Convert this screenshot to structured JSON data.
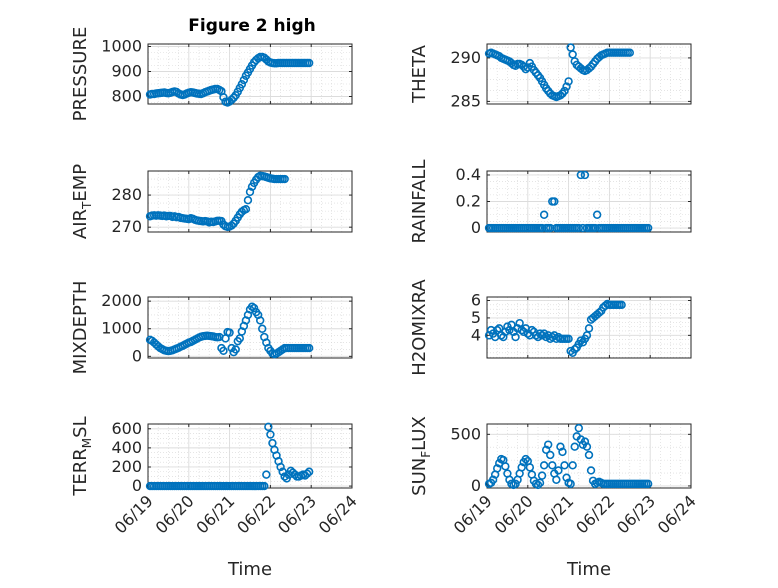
{
  "figure": {
    "title": "Figure 2 high",
    "marker_color": "#0072BD"
  },
  "chart_data": [
    {
      "type": "scatter",
      "ylabel": "PRESSURE",
      "ylabel_sub": "",
      "xlim": [
        "06/19",
        "06/24"
      ],
      "ylim": [
        770,
        1010
      ],
      "yticks": [
        800,
        900,
        1000
      ],
      "xtick_labels_visible": false,
      "grid": true,
      "x": [
        0.05,
        0.1,
        0.15,
        0.2,
        0.25,
        0.3,
        0.35,
        0.4,
        0.45,
        0.5,
        0.55,
        0.6,
        0.65,
        0.7,
        0.75,
        0.8,
        0.85,
        0.9,
        0.95,
        1.0,
        1.05,
        1.1,
        1.15,
        1.2,
        1.25,
        1.3,
        1.35,
        1.4,
        1.45,
        1.5,
        1.55,
        1.6,
        1.65,
        1.7,
        1.75,
        1.8,
        1.85,
        1.9,
        1.95,
        2.0,
        2.05,
        2.1,
        2.15,
        2.2,
        2.25,
        2.3,
        2.35,
        2.4,
        2.45,
        2.5,
        2.55,
        2.6,
        2.65,
        2.7,
        2.75,
        2.8,
        2.85,
        2.9,
        2.95,
        3.0,
        3.05,
        3.1,
        3.15,
        3.2,
        3.25,
        3.3,
        3.35,
        3.4,
        3.45,
        3.5,
        3.55,
        3.6,
        3.65,
        3.7,
        3.75,
        3.8,
        3.85,
        3.9,
        3.95
      ],
      "y": [
        808,
        810,
        810,
        812,
        813,
        814,
        815,
        816,
        814,
        813,
        815,
        818,
        820,
        818,
        812,
        808,
        806,
        808,
        812,
        815,
        817,
        816,
        814,
        812,
        811,
        810,
        813,
        817,
        820,
        823,
        826,
        828,
        830,
        830,
        826,
        821,
        797,
        779,
        776,
        780,
        787,
        795,
        805,
        819,
        834,
        849,
        866,
        883,
        896,
        910,
        924,
        937,
        946,
        953,
        958,
        958,
        955,
        948,
        940,
        936,
        934,
        933,
        933,
        934,
        934,
        934,
        934,
        934,
        934,
        934,
        934,
        934,
        934,
        934,
        934,
        934,
        934,
        934,
        934
      ]
    },
    {
      "type": "scatter",
      "ylabel": "THETA",
      "ylabel_sub": "",
      "xlim": [
        "06/19",
        "06/24"
      ],
      "ylim": [
        284.7,
        291.6
      ],
      "yticks": [
        285,
        290
      ],
      "xtick_labels_visible": false,
      "grid": true,
      "x": [
        0.05,
        0.1,
        0.15,
        0.2,
        0.25,
        0.3,
        0.35,
        0.4,
        0.45,
        0.5,
        0.55,
        0.6,
        0.65,
        0.7,
        0.75,
        0.8,
        0.85,
        0.9,
        0.95,
        1.0,
        1.05,
        1.1,
        1.15,
        1.2,
        1.25,
        1.3,
        1.35,
        1.4,
        1.45,
        1.5,
        1.55,
        1.6,
        1.65,
        1.7,
        1.75,
        1.8,
        1.85,
        1.9,
        1.95,
        2.0,
        2.05,
        2.1,
        2.15,
        2.2,
        2.25,
        2.3,
        2.35,
        2.4,
        2.45,
        2.5,
        2.55,
        2.6,
        2.65,
        2.7,
        2.75,
        2.8,
        2.85,
        2.9,
        2.95,
        3.0,
        3.05,
        3.1,
        3.15,
        3.2,
        3.25,
        3.3,
        3.35,
        3.4,
        3.45,
        3.5
      ],
      "y": [
        290.5,
        290.6,
        290.5,
        290.4,
        290.3,
        290.2,
        290.0,
        289.9,
        289.8,
        289.7,
        289.6,
        289.4,
        289.2,
        289.1,
        289.3,
        289.3,
        289.2,
        289.0,
        288.7,
        288.9,
        289.4,
        289.0,
        288.6,
        288.3,
        288.0,
        287.7,
        287.3,
        286.9,
        286.5,
        286.2,
        285.9,
        285.7,
        285.6,
        285.5,
        285.6,
        285.7,
        285.9,
        286.2,
        286.7,
        287.3,
        291.2,
        290.4,
        289.6,
        289.2,
        289.0,
        288.8,
        288.6,
        288.5,
        288.6,
        288.8,
        289.0,
        289.3,
        289.6,
        289.9,
        290.1,
        290.3,
        290.4,
        290.5,
        290.6,
        290.6,
        290.6,
        290.6,
        290.6,
        290.6,
        290.6,
        290.6,
        290.6,
        290.6,
        290.6,
        290.6
      ]
    },
    {
      "type": "scatter",
      "ylabel": "AIR",
      "ylabel_sub": "T",
      "ylabel_rest": "EMP",
      "xlim": [
        "06/19",
        "06/24"
      ],
      "ylim": [
        268.5,
        287.5
      ],
      "yticks": [
        270,
        280
      ],
      "xtick_labels_visible": false,
      "grid": true,
      "x": [
        0.05,
        0.1,
        0.15,
        0.2,
        0.25,
        0.3,
        0.35,
        0.4,
        0.45,
        0.5,
        0.55,
        0.6,
        0.65,
        0.7,
        0.75,
        0.8,
        0.85,
        0.9,
        0.95,
        1.0,
        1.05,
        1.1,
        1.15,
        1.2,
        1.25,
        1.3,
        1.35,
        1.4,
        1.45,
        1.5,
        1.55,
        1.6,
        1.65,
        1.7,
        1.75,
        1.8,
        1.85,
        1.9,
        1.95,
        2.0,
        2.05,
        2.1,
        2.15,
        2.2,
        2.25,
        2.3,
        2.35,
        2.4,
        2.45,
        2.5,
        2.55,
        2.6,
        2.65,
        2.7,
        2.75,
        2.8,
        2.85,
        2.9,
        2.95,
        3.0,
        3.05,
        3.1,
        3.15,
        3.2,
        3.25,
        3.3,
        3.35
      ],
      "y": [
        273.4,
        273.6,
        273.7,
        273.6,
        273.7,
        273.6,
        273.5,
        273.6,
        273.4,
        273.5,
        273.5,
        273.2,
        273.4,
        273.1,
        273.2,
        272.9,
        272.8,
        272.7,
        272.6,
        272.5,
        272.8,
        272.6,
        272.3,
        272.1,
        272.0,
        271.9,
        271.8,
        271.9,
        271.8,
        271.5,
        271.7,
        271.6,
        271.8,
        272.0,
        272.0,
        271.9,
        270.8,
        270.3,
        270.1,
        270.2,
        270.5,
        271.1,
        272.0,
        273.0,
        274.0,
        274.8,
        275.3,
        275.6,
        278.4,
        281.0,
        282.6,
        283.8,
        284.8,
        285.6,
        286.0,
        285.9,
        285.8,
        285.6,
        285.4,
        285.2,
        285.1,
        285.0,
        285.0,
        285.0,
        285.0,
        285.0,
        285.0
      ]
    },
    {
      "type": "scatter",
      "ylabel": "RAINFALL",
      "ylabel_sub": "",
      "xlim": [
        "06/19",
        "06/24"
      ],
      "ylim": [
        -0.03,
        0.43
      ],
      "yticks": [
        0,
        0.2,
        0.4
      ],
      "xtick_labels_visible": false,
      "grid": true,
      "x": [
        0.05,
        0.1,
        0.15,
        0.2,
        0.25,
        0.3,
        0.35,
        0.4,
        0.45,
        0.5,
        0.55,
        0.6,
        0.65,
        0.7,
        0.75,
        0.8,
        0.85,
        0.9,
        0.95,
        1.0,
        1.05,
        1.1,
        1.15,
        1.2,
        1.25,
        1.3,
        1.35,
        1.4,
        1.45,
        1.5,
        1.55,
        1.6,
        1.65,
        1.7,
        1.75,
        1.8,
        1.85,
        1.9,
        1.95,
        2.0,
        2.05,
        2.1,
        2.15,
        2.2,
        2.25,
        2.3,
        2.35,
        2.4,
        2.45,
        2.5,
        2.55,
        2.6,
        2.65,
        2.7,
        2.75,
        2.8,
        2.85,
        2.9,
        2.95,
        3.0,
        3.05,
        3.1,
        3.15,
        3.2,
        3.25,
        3.3,
        3.35,
        3.4,
        3.45,
        3.5,
        3.55,
        3.6,
        3.65,
        3.7,
        3.75,
        3.8,
        3.85,
        3.9,
        3.95
      ],
      "y": [
        0,
        0,
        0,
        0,
        0,
        0,
        0,
        0,
        0,
        0,
        0,
        0,
        0,
        0,
        0,
        0,
        0,
        0,
        0,
        0,
        0,
        0,
        0,
        0,
        0,
        0,
        0,
        0.1,
        0,
        0,
        0,
        0.2,
        0.2,
        0,
        0,
        0,
        0,
        0,
        0,
        0,
        0,
        0,
        0,
        0,
        0,
        0.4,
        0,
        0.4,
        0,
        0,
        0,
        0,
        0,
        0.1,
        0,
        0,
        0,
        0,
        0,
        0,
        0,
        0,
        0,
        0,
        0,
        0,
        0,
        0,
        0,
        0,
        0,
        0,
        0,
        0,
        0,
        0,
        0,
        0,
        0
      ]
    },
    {
      "type": "scatter",
      "ylabel": "MIXDEPTH",
      "ylabel_sub": "",
      "xlim": [
        "06/19",
        "06/24"
      ],
      "ylim": [
        -60,
        2150
      ],
      "yticks": [
        0,
        1000,
        2000
      ],
      "xtick_labels_visible": false,
      "grid": true,
      "x": [
        0.05,
        0.1,
        0.15,
        0.2,
        0.25,
        0.3,
        0.35,
        0.4,
        0.45,
        0.5,
        0.55,
        0.6,
        0.65,
        0.7,
        0.75,
        0.8,
        0.85,
        0.9,
        0.95,
        1.0,
        1.05,
        1.1,
        1.15,
        1.2,
        1.25,
        1.3,
        1.35,
        1.4,
        1.45,
        1.5,
        1.55,
        1.6,
        1.65,
        1.7,
        1.75,
        1.8,
        1.85,
        1.9,
        1.95,
        2.0,
        2.05,
        2.1,
        2.15,
        2.2,
        2.25,
        2.3,
        2.35,
        2.4,
        2.45,
        2.5,
        2.55,
        2.6,
        2.65,
        2.7,
        2.75,
        2.8,
        2.85,
        2.9,
        2.95,
        3.0,
        3.05,
        3.1,
        3.15,
        3.2,
        3.25,
        3.3,
        3.35,
        3.4,
        3.45,
        3.5,
        3.55,
        3.6,
        3.65,
        3.7,
        3.75,
        3.8,
        3.85,
        3.9,
        3.95
      ],
      "y": [
        600,
        560,
        500,
        430,
        360,
        300,
        260,
        220,
        200,
        190,
        200,
        220,
        250,
        280,
        310,
        350,
        380,
        420,
        460,
        500,
        520,
        560,
        600,
        640,
        680,
        710,
        730,
        740,
        750,
        740,
        730,
        720,
        700,
        690,
        700,
        300,
        200,
        650,
        880,
        860,
        300,
        150,
        250,
        550,
        650,
        900,
        1100,
        1300,
        1500,
        1700,
        1800,
        1750,
        1600,
        1500,
        1300,
        1000,
        700,
        500,
        300,
        200,
        100,
        80,
        100,
        150,
        200,
        250,
        300,
        300,
        300,
        300,
        300,
        300,
        300,
        300,
        300,
        300,
        300,
        300,
        300
      ]
    },
    {
      "type": "scatter",
      "ylabel": "H2OMIXRA",
      "ylabel_sub": "",
      "xlim": [
        "06/19",
        "06/24"
      ],
      "ylim": [
        2.7,
        6.2
      ],
      "yticks": [
        4,
        5,
        6
      ],
      "xtick_labels_visible": false,
      "grid": true,
      "x": [
        0.05,
        0.1,
        0.15,
        0.2,
        0.25,
        0.3,
        0.35,
        0.4,
        0.45,
        0.5,
        0.55,
        0.6,
        0.65,
        0.7,
        0.75,
        0.8,
        0.85,
        0.9,
        0.95,
        1.0,
        1.05,
        1.1,
        1.15,
        1.2,
        1.25,
        1.3,
        1.35,
        1.4,
        1.45,
        1.5,
        1.55,
        1.6,
        1.65,
        1.7,
        1.75,
        1.8,
        1.85,
        1.9,
        1.95,
        2.0,
        2.05,
        2.1,
        2.15,
        2.2,
        2.25,
        2.3,
        2.35,
        2.4,
        2.45,
        2.5,
        2.55,
        2.6,
        2.65,
        2.7,
        2.75,
        2.8,
        2.85,
        2.9,
        2.95,
        3.0,
        3.05,
        3.1,
        3.15,
        3.2,
        3.25,
        3.3
      ],
      "y": [
        4.0,
        4.3,
        4.1,
        3.9,
        4.3,
        4.4,
        4.0,
        3.9,
        4.2,
        4.5,
        4.3,
        4.6,
        4.2,
        3.9,
        4.4,
        4.7,
        4.3,
        4.2,
        4.4,
        4.1,
        4.0,
        4.3,
        4.2,
        4.0,
        3.9,
        4.1,
        4.0,
        4.1,
        3.9,
        4.0,
        3.8,
        3.9,
        4.0,
        3.8,
        3.9,
        3.8,
        3.8,
        3.8,
        3.8,
        3.8,
        3.1,
        3.0,
        3.2,
        3.3,
        3.5,
        3.7,
        3.6,
        3.8,
        4.0,
        4.4,
        4.9,
        5.0,
        5.1,
        5.2,
        5.3,
        5.4,
        5.6,
        5.7,
        5.8,
        5.75,
        5.75,
        5.75,
        5.75,
        5.75,
        5.75,
        5.75
      ]
    },
    {
      "type": "scatter",
      "ylabel": "TERR",
      "ylabel_sub": "M",
      "ylabel_rest": "SL",
      "xlim": [
        "06/19",
        "06/24"
      ],
      "ylim": [
        -20,
        650
      ],
      "yticks": [
        0,
        200,
        400,
        600
      ],
      "xtick_labels": [
        "06/19",
        "06/20",
        "06/21",
        "06/22",
        "06/23",
        "06/24"
      ],
      "xlabel": "Time",
      "grid": true,
      "x": [
        0.05,
        0.1,
        0.15,
        0.2,
        0.25,
        0.3,
        0.35,
        0.4,
        0.45,
        0.5,
        0.55,
        0.6,
        0.65,
        0.7,
        0.75,
        0.8,
        0.85,
        0.9,
        0.95,
        1.0,
        1.05,
        1.1,
        1.15,
        1.2,
        1.25,
        1.3,
        1.35,
        1.4,
        1.45,
        1.5,
        1.55,
        1.6,
        1.65,
        1.7,
        1.75,
        1.8,
        1.85,
        1.9,
        1.95,
        2.0,
        2.05,
        2.1,
        2.15,
        2.2,
        2.25,
        2.3,
        2.35,
        2.4,
        2.45,
        2.5,
        2.55,
        2.6,
        2.65,
        2.7,
        2.75,
        2.8,
        2.85,
        2.9,
        2.95,
        3.0,
        3.05,
        3.1,
        3.15,
        3.2,
        3.25,
        3.3,
        3.35,
        3.4,
        3.45,
        3.5,
        3.55,
        3.6,
        3.65,
        3.7,
        3.75,
        3.8,
        3.85,
        3.9,
        3.95
      ],
      "y": [
        0,
        0,
        0,
        0,
        0,
        0,
        0,
        0,
        0,
        0,
        0,
        0,
        0,
        0,
        0,
        0,
        0,
        0,
        0,
        0,
        0,
        0,
        0,
        0,
        0,
        0,
        0,
        0,
        0,
        0,
        0,
        0,
        0,
        0,
        0,
        0,
        0,
        0,
        0,
        0,
        0,
        0,
        0,
        0,
        0,
        0,
        0,
        0,
        0,
        0,
        0,
        0,
        0,
        0,
        0,
        0,
        0,
        120,
        620,
        540,
        450,
        380,
        320,
        260,
        200,
        150,
        100,
        80,
        120,
        160,
        140,
        120,
        100,
        100,
        110,
        120,
        110,
        130,
        150
      ]
    },
    {
      "type": "scatter",
      "ylabel": "SUN",
      "ylabel_sub": "F",
      "ylabel_rest": "LUX",
      "xlim": [
        "06/19",
        "06/24"
      ],
      "ylim": [
        -20,
        600
      ],
      "yticks": [
        0,
        500
      ],
      "xtick_labels": [
        "06/19",
        "06/20",
        "06/21",
        "06/22",
        "06/23",
        "06/24"
      ],
      "xlabel": "Time",
      "grid": true,
      "x": [
        0.05,
        0.1,
        0.15,
        0.2,
        0.25,
        0.3,
        0.35,
        0.4,
        0.45,
        0.5,
        0.55,
        0.6,
        0.65,
        0.7,
        0.75,
        0.8,
        0.85,
        0.9,
        0.95,
        1.0,
        1.05,
        1.1,
        1.15,
        1.2,
        1.25,
        1.3,
        1.35,
        1.4,
        1.45,
        1.5,
        1.55,
        1.6,
        1.65,
        1.7,
        1.75,
        1.8,
        1.85,
        1.9,
        1.95,
        2.0,
        2.05,
        2.1,
        2.15,
        2.2,
        2.25,
        2.3,
        2.35,
        2.4,
        2.45,
        2.5,
        2.55,
        2.6,
        2.65,
        2.7,
        2.75,
        2.8,
        2.85,
        2.9,
        2.95,
        3.0,
        3.05,
        3.1,
        3.15,
        3.2,
        3.25,
        3.3,
        3.35,
        3.4,
        3.45,
        3.5,
        3.55,
        3.6,
        3.65,
        3.7,
        3.75,
        3.8,
        3.85,
        3.9,
        3.95
      ],
      "y": [
        20,
        30,
        60,
        110,
        170,
        220,
        260,
        250,
        190,
        120,
        60,
        20,
        10,
        20,
        60,
        120,
        180,
        230,
        260,
        240,
        180,
        110,
        50,
        20,
        10,
        30,
        100,
        200,
        350,
        400,
        300,
        200,
        120,
        60,
        150,
        380,
        330,
        200,
        80,
        30,
        20,
        200,
        380,
        480,
        560,
        450,
        400,
        430,
        380,
        300,
        150,
        50,
        20,
        30,
        40,
        30,
        20,
        20,
        20,
        20,
        20,
        20,
        20,
        20,
        20,
        20,
        20,
        20,
        20,
        20,
        20,
        20,
        20,
        20,
        20,
        20,
        20,
        20,
        20
      ]
    }
  ]
}
